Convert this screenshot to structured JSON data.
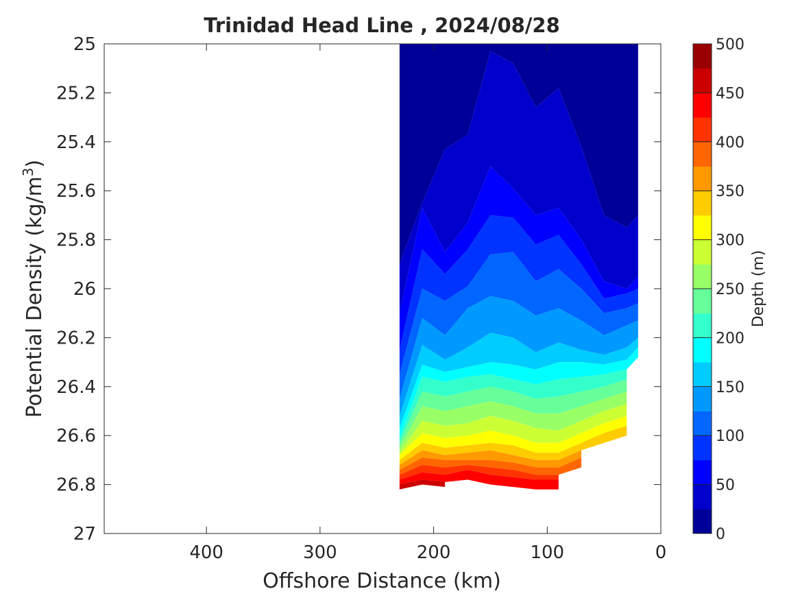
{
  "chart_data": {
    "type": "filled-contour",
    "title": "Trinidad Head Line , 2024/08/28",
    "xlabel": "Offshore Distance (km)",
    "ylabel": "Potential Density (kg/m",
    "ylabel_sup": "3",
    "ylabel_close": ")",
    "xlim": [
      490,
      0
    ],
    "ylim": [
      25,
      27
    ],
    "y_reversed": true,
    "x_reversed": true,
    "xticks": [
      400,
      300,
      200,
      100,
      0
    ],
    "yticks": [
      25,
      25.2,
      25.4,
      25.6,
      25.8,
      26,
      26.2,
      26.4,
      26.6,
      26.8,
      27
    ],
    "colorbar": {
      "label": "Depth (m)",
      "min": 0,
      "max": 500,
      "step": 25,
      "ticks": [
        0,
        50,
        100,
        150,
        200,
        250,
        300,
        350,
        400,
        450,
        500
      ],
      "colormap": "jet"
    },
    "station_distances": [
      230,
      210,
      190,
      170,
      150,
      130,
      110,
      90,
      70,
      50,
      30,
      20
    ],
    "contours": [
      {
        "level": 25,
        "density": [
          25.9,
          25.65,
          25.43,
          25.37,
          25.03,
          25.08,
          25.26,
          25.18,
          25.42,
          25.7,
          25.75,
          25.7
        ]
      },
      {
        "level": 50,
        "density": [
          26.1,
          25.67,
          25.85,
          25.73,
          25.5,
          25.59,
          25.7,
          25.67,
          25.8,
          25.97,
          26.0,
          25.95
        ]
      },
      {
        "level": 75,
        "density": [
          26.25,
          25.84,
          25.94,
          25.84,
          25.7,
          25.71,
          25.82,
          25.78,
          25.9,
          26.04,
          26.02,
          26.0
        ]
      },
      {
        "level": 100,
        "density": [
          26.35,
          26.0,
          26.05,
          25.99,
          25.86,
          25.85,
          25.97,
          25.92,
          26.0,
          26.1,
          26.08,
          26.06
        ]
      },
      {
        "level": 125,
        "density": [
          26.45,
          26.12,
          26.19,
          26.08,
          26.03,
          26.05,
          26.11,
          26.08,
          26.13,
          26.19,
          26.15,
          26.13
        ]
      },
      {
        "level": 150,
        "density": [
          26.52,
          26.23,
          26.29,
          26.24,
          26.18,
          26.2,
          26.26,
          26.22,
          26.25,
          26.27,
          26.24,
          26.2
        ]
      },
      {
        "level": 175,
        "density": [
          26.57,
          26.31,
          26.34,
          26.32,
          26.3,
          26.31,
          26.33,
          26.3,
          26.3,
          26.31,
          26.29,
          26.24
        ]
      },
      {
        "level": 200,
        "density": [
          26.61,
          26.36,
          26.38,
          26.36,
          26.35,
          26.37,
          26.39,
          26.37,
          26.36,
          26.35,
          26.33
        ]
      },
      {
        "level": 225,
        "density": [
          26.63,
          26.42,
          26.44,
          26.42,
          26.4,
          26.42,
          26.45,
          26.44,
          26.42,
          26.4,
          26.37
        ]
      },
      {
        "level": 250,
        "density": [
          26.65,
          26.48,
          26.5,
          26.48,
          26.46,
          26.48,
          26.51,
          26.51,
          26.48,
          26.45,
          26.42
        ]
      },
      {
        "level": 275,
        "density": [
          26.67,
          26.54,
          26.56,
          26.55,
          26.52,
          26.54,
          26.57,
          26.58,
          26.54,
          26.5,
          26.47
        ]
      },
      {
        "level": 300,
        "density": [
          26.68,
          26.59,
          26.61,
          26.6,
          26.58,
          26.6,
          26.63,
          26.63,
          26.59,
          26.55,
          26.52
        ]
      },
      {
        "level": 325,
        "density": [
          26.7,
          26.63,
          26.65,
          26.64,
          26.63,
          26.64,
          26.67,
          26.67,
          26.63,
          26.59,
          26.56
        ]
      },
      {
        "level": 350,
        "density": [
          26.72,
          26.66,
          26.68,
          26.67,
          26.66,
          26.68,
          26.7,
          26.7,
          26.66
        ]
      },
      {
        "level": 375,
        "density": [
          26.74,
          26.69,
          26.7,
          26.7,
          26.7,
          26.71,
          26.73,
          26.73,
          26.69
        ]
      },
      {
        "level": 400,
        "density": [
          26.76,
          26.72,
          26.73,
          26.72,
          26.73,
          26.74,
          26.76,
          26.76
        ]
      },
      {
        "level": 425,
        "density": [
          26.78,
          26.75,
          26.76,
          26.74,
          26.76,
          26.77,
          26.78,
          26.78
        ]
      },
      {
        "level": 450,
        "density": [
          26.8,
          26.78,
          26.79
        ]
      }
    ]
  }
}
